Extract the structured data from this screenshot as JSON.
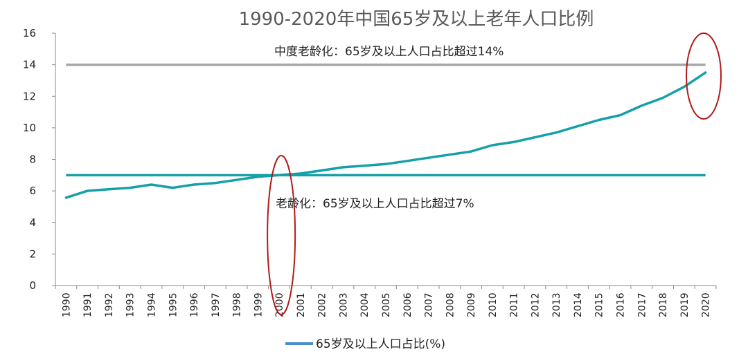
{
  "chart_data": {
    "type": "line",
    "title": "1990-2020年中国65岁及以上老年人口比例",
    "ylim": [
      0,
      16
    ],
    "yticks": [
      "0",
      "2",
      "4",
      "6",
      "8",
      "10",
      "12",
      "14",
      "16"
    ],
    "x": [
      "1990",
      "1991",
      "1992",
      "1993",
      "1994",
      "1995",
      "1996",
      "1997",
      "1998",
      "1999",
      "2000",
      "2001",
      "2002",
      "2003",
      "2004",
      "2005",
      "2006",
      "2007",
      "2008",
      "2009",
      "2010",
      "2011",
      "2012",
      "2013",
      "2014",
      "2015",
      "2016",
      "2017",
      "2018",
      "2019",
      "2020"
    ],
    "series": [
      {
        "name": "65岁及以上人口占比(%)",
        "color": "#14A0A8",
        "values": [
          5.57,
          6.0,
          6.1,
          6.2,
          6.4,
          6.2,
          6.4,
          6.5,
          6.7,
          6.9,
          7.0,
          7.1,
          7.3,
          7.5,
          7.6,
          7.7,
          7.9,
          8.1,
          8.3,
          8.5,
          8.9,
          9.1,
          9.4,
          9.7,
          10.1,
          10.5,
          10.8,
          11.4,
          11.9,
          12.6,
          13.5
        ]
      }
    ],
    "reference_lines": [
      {
        "value": 14,
        "color": "#A6A6A6",
        "label": "中度老龄化：65岁及以上人口占比超过14%"
      },
      {
        "value": 7,
        "color": "#14A0A8",
        "label": "老龄化：65岁及以上人口占比超过7%"
      }
    ],
    "highlights": [
      {
        "category": "2000",
        "color": "#B01B1B"
      },
      {
        "category": "2020",
        "color": "#B01B1B"
      }
    ],
    "legend_position": "bottom",
    "grid": false
  }
}
